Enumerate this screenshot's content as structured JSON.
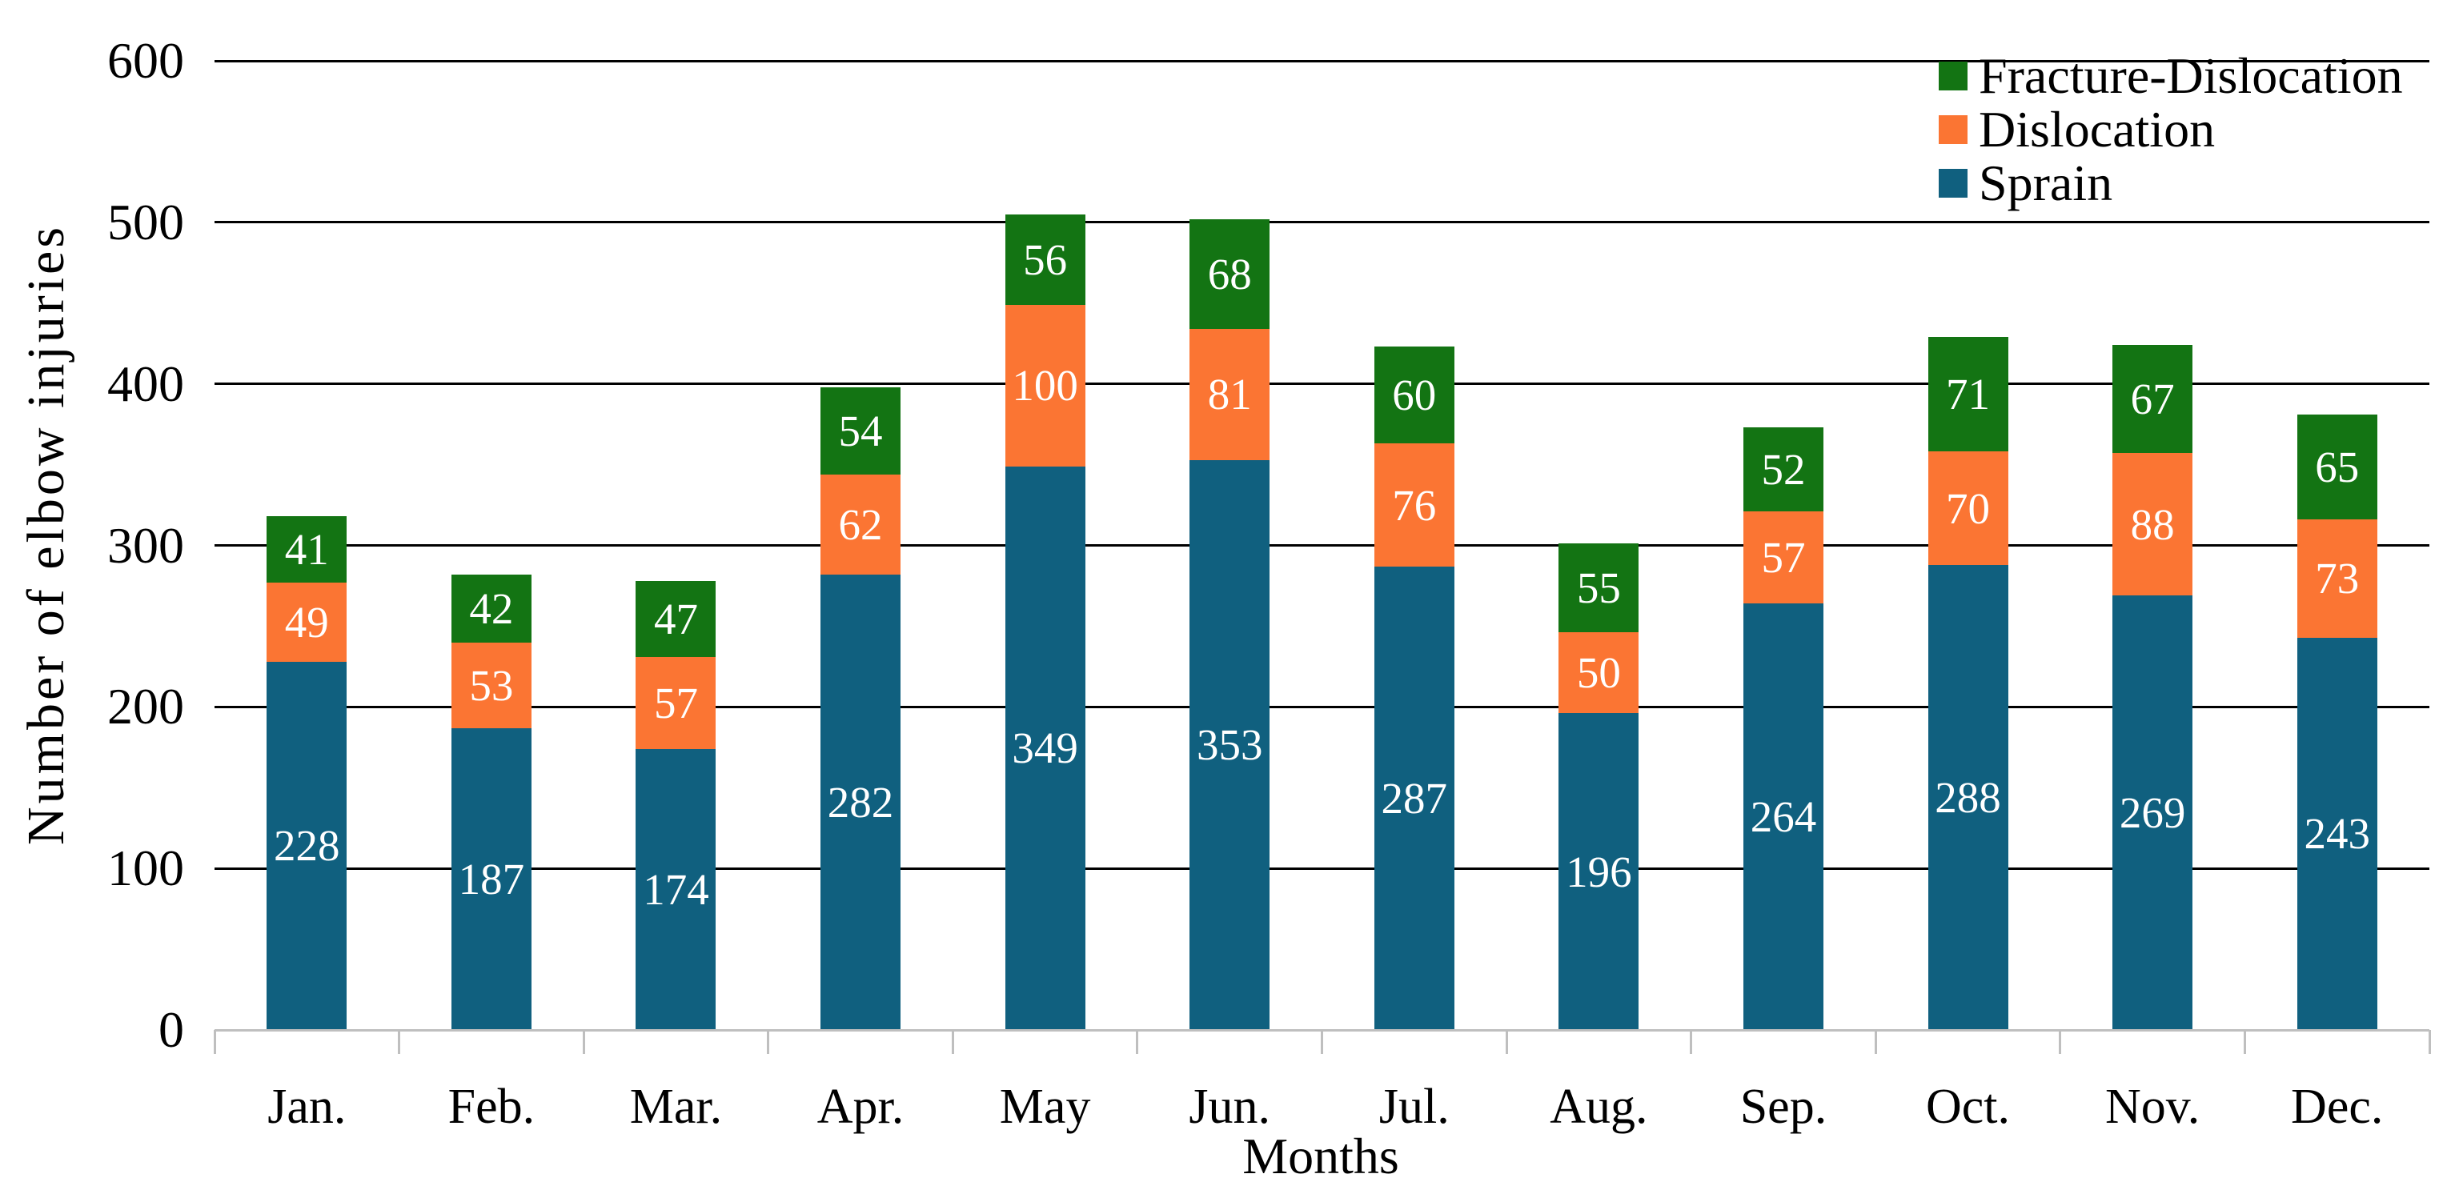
{
  "chart_data": {
    "type": "bar",
    "stacked": true,
    "title": "",
    "xlabel": "Months",
    "ylabel": "Number of elbow injuries",
    "ylim": [
      0,
      600
    ],
    "yticks": [
      0,
      100,
      200,
      300,
      400,
      500,
      600
    ],
    "grid": "horizontal",
    "legend_position": "top-right",
    "legend_order": [
      "Fracture-Dislocation",
      "Dislocation",
      "Sprain"
    ],
    "categories": [
      "Jan.",
      "Feb.",
      "Mar.",
      "Apr.",
      "May",
      "Jun.",
      "Jul.",
      "Aug.",
      "Sep.",
      "Oct.",
      "Nov.",
      "Dec."
    ],
    "series": [
      {
        "name": "Sprain",
        "color": "#10607f",
        "values": [
          228,
          187,
          174,
          282,
          349,
          353,
          287,
          196,
          264,
          288,
          269,
          243
        ]
      },
      {
        "name": "Dislocation",
        "color": "#fb7533",
        "values": [
          49,
          53,
          57,
          62,
          100,
          81,
          76,
          50,
          57,
          70,
          88,
          73
        ]
      },
      {
        "name": "Fracture-Dislocation",
        "color": "#137413",
        "values": [
          41,
          42,
          47,
          54,
          56,
          68,
          60,
          55,
          52,
          71,
          67,
          65
        ]
      }
    ],
    "colors": {
      "gridline": "#000000",
      "axis_baseline": "#bfbfbf",
      "bar_label_text": "#ffffff",
      "axis_text": "#000000"
    }
  }
}
